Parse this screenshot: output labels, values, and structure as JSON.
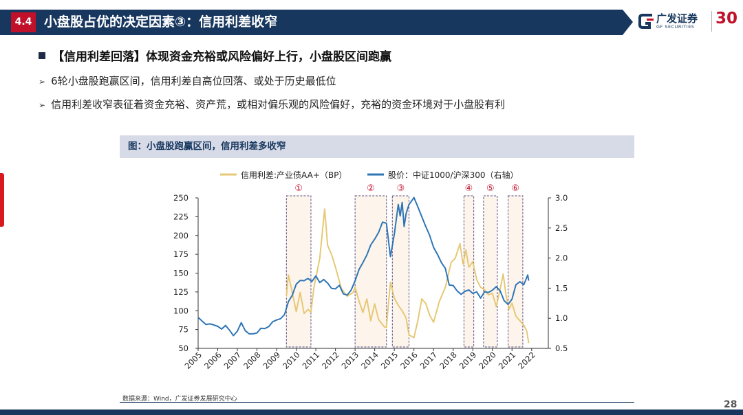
{
  "header": {
    "section": "4.4",
    "title": "小盘股占优的决定因素③：信用利差收窄"
  },
  "logo": {
    "cn": "广发证券",
    "en": "GF SECURITIES",
    "badge": "30"
  },
  "bullets": {
    "main": "【信用利差回落】体现资金充裕或风险偏好上行，小盘股区间跑赢",
    "sub1": "6轮小盘股跑赢区间，信用利差自高位回落、或处于历史最低位",
    "sub2": "信用利差收窄表征着资金充裕、资产荒，或相对偏乐观的风险偏好，充裕的资金环境对于小盘股有利"
  },
  "figure_title": "图：小盘股跑赢区间，信用利差多收窄",
  "source": "数据来源：Wind，广发证券发展研究中心",
  "page_number": "28",
  "colors": {
    "navy": "#17375e",
    "red": "#c0102a",
    "spread": "#e6c875",
    "ratio": "#2e75b6",
    "shade_border": "#5b4a7d",
    "shade_fill": "#fdf5ec"
  },
  "chart_data": {
    "type": "line",
    "legend": [
      "信用利差:产业债AA+（BP）",
      "股价：中证1000/沪深300（右轴）"
    ],
    "x_ticks": [
      "2005",
      "2006",
      "2007",
      "2008",
      "2009",
      "2010",
      "2011",
      "2012",
      "2013",
      "2014",
      "2015",
      "2016",
      "2017",
      "2018",
      "2019",
      "2020",
      "2021",
      "2022"
    ],
    "ylim_left": [
      50,
      250
    ],
    "yticks_left": [
      "250",
      "225",
      "200",
      "175",
      "150",
      "125",
      "100",
      "75",
      "50"
    ],
    "ylim_right": [
      0.5,
      3.0
    ],
    "yticks_right": [
      "3.0",
      "2.5",
      "2.0",
      "1.5",
      "1.0",
      "0.5"
    ],
    "regions": [
      {
        "label": "①",
        "start": 2009.5,
        "end": 2010.75
      },
      {
        "label": "②",
        "start": 2013.0,
        "end": 2014.6
      },
      {
        "label": "③",
        "start": 2014.9,
        "end": 2015.75
      },
      {
        "label": "④",
        "start": 2018.55,
        "end": 2019.05
      },
      {
        "label": "⑤",
        "start": 2019.55,
        "end": 2020.25
      },
      {
        "label": "⑥",
        "start": 2020.8,
        "end": 2021.55
      }
    ],
    "series": [
      {
        "name": "信用利差:产业债AA+（BP）",
        "axis": "left",
        "color": "#e6c875",
        "points": [
          [
            2009.5,
            115
          ],
          [
            2009.6,
            152
          ],
          [
            2009.75,
            130
          ],
          [
            2010.0,
            100
          ],
          [
            2010.2,
            125
          ],
          [
            2010.4,
            95
          ],
          [
            2010.6,
            105
          ],
          [
            2010.75,
            100
          ],
          [
            2010.9,
            130
          ],
          [
            2011.2,
            165
          ],
          [
            2011.45,
            232
          ],
          [
            2011.6,
            190
          ],
          [
            2011.8,
            170
          ],
          [
            2012.0,
            155
          ],
          [
            2012.3,
            130
          ],
          [
            2012.6,
            115
          ],
          [
            2012.9,
            125
          ],
          [
            2013.0,
            130
          ],
          [
            2013.2,
            115
          ],
          [
            2013.4,
            95
          ],
          [
            2013.6,
            115
          ],
          [
            2013.8,
            85
          ],
          [
            2014.0,
            110
          ],
          [
            2014.2,
            92
          ],
          [
            2014.5,
            80
          ],
          [
            2014.6,
            78
          ],
          [
            2014.8,
            143
          ],
          [
            2015.0,
            120
          ],
          [
            2015.2,
            108
          ],
          [
            2015.4,
            95
          ],
          [
            2015.6,
            88
          ],
          [
            2015.75,
            70
          ],
          [
            2016.0,
            65
          ],
          [
            2016.2,
            90
          ],
          [
            2016.4,
            115
          ],
          [
            2016.6,
            105
          ],
          [
            2016.8,
            90
          ],
          [
            2017.0,
            85
          ],
          [
            2017.3,
            110
          ],
          [
            2017.6,
            130
          ],
          [
            2017.9,
            160
          ],
          [
            2018.1,
            170
          ],
          [
            2018.35,
            192
          ],
          [
            2018.5,
            160
          ],
          [
            2018.65,
            178
          ],
          [
            2018.8,
            160
          ],
          [
            2019.0,
            165
          ],
          [
            2019.2,
            145
          ],
          [
            2019.4,
            135
          ],
          [
            2019.6,
            130
          ],
          [
            2019.8,
            125
          ],
          [
            2020.0,
            120
          ],
          [
            2020.2,
            105
          ],
          [
            2020.4,
            130
          ],
          [
            2020.55,
            145
          ],
          [
            2020.7,
            120
          ],
          [
            2020.85,
            105
          ],
          [
            2021.0,
            112
          ],
          [
            2021.2,
            96
          ],
          [
            2021.4,
            90
          ],
          [
            2021.6,
            85
          ],
          [
            2021.75,
            70
          ],
          [
            2021.85,
            62
          ]
        ]
      },
      {
        "name": "股价：中证1000/沪深300（右轴）",
        "axis": "right",
        "color": "#2e75b6",
        "points": [
          [
            2005.0,
            1.0
          ],
          [
            2005.2,
            0.95
          ],
          [
            2005.4,
            0.9
          ],
          [
            2005.6,
            0.92
          ],
          [
            2005.8,
            0.87
          ],
          [
            2006.0,
            0.85
          ],
          [
            2006.2,
            0.82
          ],
          [
            2006.4,
            0.88
          ],
          [
            2006.6,
            0.8
          ],
          [
            2006.8,
            0.74
          ],
          [
            2007.0,
            0.78
          ],
          [
            2007.2,
            0.92
          ],
          [
            2007.4,
            0.8
          ],
          [
            2007.6,
            0.72
          ],
          [
            2007.8,
            0.75
          ],
          [
            2008.0,
            0.76
          ],
          [
            2008.2,
            0.85
          ],
          [
            2008.4,
            0.8
          ],
          [
            2008.6,
            0.85
          ],
          [
            2008.8,
            0.92
          ],
          [
            2009.0,
            0.95
          ],
          [
            2009.2,
            1.02
          ],
          [
            2009.4,
            1.05
          ],
          [
            2009.6,
            1.25
          ],
          [
            2009.8,
            1.4
          ],
          [
            2010.0,
            1.55
          ],
          [
            2010.2,
            1.65
          ],
          [
            2010.4,
            1.6
          ],
          [
            2010.6,
            1.68
          ],
          [
            2010.8,
            1.62
          ],
          [
            2011.0,
            1.7
          ],
          [
            2011.2,
            1.6
          ],
          [
            2011.4,
            1.65
          ],
          [
            2011.6,
            1.58
          ],
          [
            2011.8,
            1.52
          ],
          [
            2012.0,
            1.48
          ],
          [
            2012.2,
            1.52
          ],
          [
            2012.4,
            1.42
          ],
          [
            2012.6,
            1.4
          ],
          [
            2012.8,
            1.45
          ],
          [
            2013.0,
            1.6
          ],
          [
            2013.2,
            1.8
          ],
          [
            2013.4,
            1.95
          ],
          [
            2013.6,
            2.05
          ],
          [
            2013.8,
            2.2
          ],
          [
            2014.0,
            2.3
          ],
          [
            2014.2,
            2.45
          ],
          [
            2014.4,
            2.6
          ],
          [
            2014.6,
            2.55
          ],
          [
            2014.8,
            2.0
          ],
          [
            2015.0,
            2.4
          ],
          [
            2015.2,
            2.9
          ],
          [
            2015.3,
            2.7
          ],
          [
            2015.4,
            2.95
          ],
          [
            2015.5,
            2.5
          ],
          [
            2015.6,
            2.75
          ],
          [
            2015.75,
            2.9
          ],
          [
            2015.9,
            2.95
          ],
          [
            2016.0,
            3.0
          ],
          [
            2016.2,
            2.85
          ],
          [
            2016.4,
            2.7
          ],
          [
            2016.6,
            2.5
          ],
          [
            2016.8,
            2.35
          ],
          [
            2017.0,
            2.2
          ],
          [
            2017.2,
            2.05
          ],
          [
            2017.4,
            1.95
          ],
          [
            2017.6,
            1.8
          ],
          [
            2017.8,
            1.55
          ],
          [
            2018.0,
            1.55
          ],
          [
            2018.2,
            1.45
          ],
          [
            2018.4,
            1.4
          ],
          [
            2018.6,
            1.45
          ],
          [
            2018.8,
            1.5
          ],
          [
            2019.0,
            1.4
          ],
          [
            2019.2,
            1.45
          ],
          [
            2019.4,
            1.35
          ],
          [
            2019.6,
            1.42
          ],
          [
            2019.8,
            1.4
          ],
          [
            2020.0,
            1.48
          ],
          [
            2020.2,
            1.55
          ],
          [
            2020.4,
            1.45
          ],
          [
            2020.6,
            1.3
          ],
          [
            2020.8,
            1.22
          ],
          [
            2021.0,
            1.3
          ],
          [
            2021.2,
            1.55
          ],
          [
            2021.4,
            1.6
          ],
          [
            2021.6,
            1.58
          ],
          [
            2021.8,
            1.72
          ],
          [
            2021.85,
            1.62
          ]
        ]
      }
    ]
  }
}
